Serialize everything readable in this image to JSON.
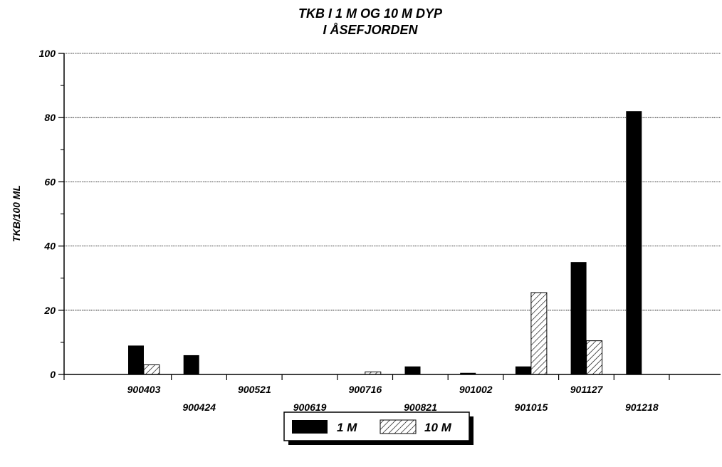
{
  "chart_data": {
    "type": "bar",
    "title": "TKB I 1 M OG 10 M DYP",
    "subtitle": "I ÅSEFJORDEN",
    "ylabel": "TKB/100 ML",
    "xlabel": "",
    "ylim": [
      0,
      100
    ],
    "yticks": [
      0,
      20,
      40,
      60,
      80,
      100
    ],
    "grid": true,
    "legend_position": "bottom-center",
    "categories": [
      "900403",
      "900424",
      "900521",
      "900619",
      "900716",
      "900821",
      "901002",
      "901015",
      "901127",
      "901218"
    ],
    "series": [
      {
        "name": "1 M",
        "color": "#000000",
        "pattern": "solid",
        "values": [
          9,
          6,
          0,
          0,
          0,
          2.5,
          0.5,
          2.5,
          35,
          82
        ]
      },
      {
        "name": "10 M",
        "color": "#ffffff",
        "pattern": "diagonal-hatch",
        "values": [
          3,
          0,
          0,
          0,
          0.8,
          0,
          0,
          25.5,
          10.5,
          0
        ]
      }
    ]
  }
}
